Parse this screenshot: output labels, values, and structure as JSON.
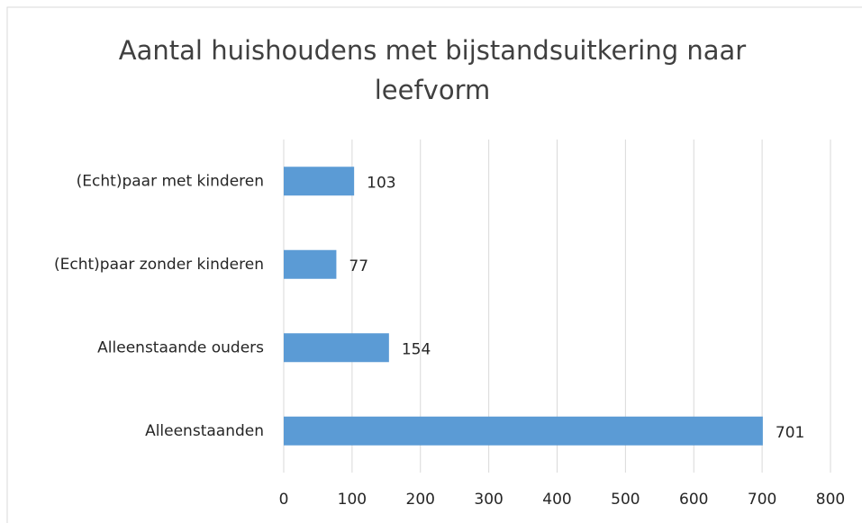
{
  "chart_data": {
    "type": "bar",
    "orientation": "horizontal",
    "title": "Aantal huishoudens met bijstandsuitkering naar leefvorm",
    "categories": [
      "(Echt)paar met kinderen",
      "(Echt)paar zonder kinderen",
      "Alleenstaande ouders",
      "Alleenstaanden"
    ],
    "values": [
      103,
      77,
      154,
      701
    ],
    "color": "#5b9bd5",
    "xlim": [
      0,
      800
    ],
    "xticks": [
      0,
      100,
      200,
      300,
      400,
      500,
      600,
      700,
      800
    ],
    "grid": true
  }
}
